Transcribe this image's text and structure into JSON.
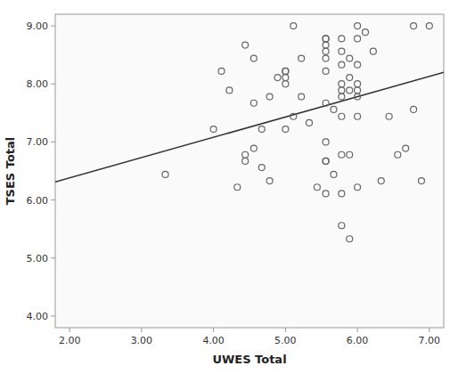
{
  "chart_data": {
    "type": "scatter",
    "xlabel": "UWES Total",
    "ylabel": "TSES Total",
    "xlim": [
      1.8,
      7.2
    ],
    "ylim": [
      3.8,
      9.2
    ],
    "xticks": [
      {
        "value": 2.0,
        "label": "2.00"
      },
      {
        "value": 3.0,
        "label": "3.00"
      },
      {
        "value": 4.0,
        "label": "4.00"
      },
      {
        "value": 5.0,
        "label": "5.00"
      },
      {
        "value": 6.0,
        "label": "6.00"
      },
      {
        "value": 7.0,
        "label": "7.00"
      }
    ],
    "yticks": [
      {
        "value": 4.0,
        "label": "4.00"
      },
      {
        "value": 5.0,
        "label": "5.00"
      },
      {
        "value": 6.0,
        "label": "6.00"
      },
      {
        "value": 7.0,
        "label": "7.00"
      },
      {
        "value": 8.0,
        "label": "8.00"
      },
      {
        "value": 9.0,
        "label": "9.00"
      }
    ],
    "grid": false,
    "series": [
      {
        "type": "scatter",
        "marker": "open-circle",
        "color": "#666666",
        "x": [
          3.33,
          4.0,
          4.11,
          4.22,
          4.33,
          4.44,
          4.44,
          4.44,
          4.56,
          4.56,
          4.56,
          4.67,
          4.67,
          4.78,
          4.78,
          4.89,
          5.0,
          5.0,
          5.0,
          5.0,
          5.0,
          5.11,
          5.11,
          5.22,
          5.22,
          5.33,
          5.44,
          5.56,
          5.56,
          5.56,
          5.56,
          5.56,
          5.56,
          5.56,
          5.56,
          5.56,
          5.56,
          5.56,
          5.67,
          5.67,
          5.78,
          5.78,
          5.78,
          5.78,
          5.78,
          5.78,
          5.78,
          5.78,
          5.78,
          5.78,
          5.89,
          5.89,
          5.89,
          5.89,
          5.89,
          6.0,
          6.0,
          6.0,
          6.0,
          6.0,
          6.0,
          6.0,
          6.0,
          6.11,
          6.22,
          6.33,
          6.44,
          6.56,
          6.67,
          6.78,
          6.78,
          6.89,
          7.0
        ],
        "values": [
          6.44,
          7.22,
          8.22,
          7.89,
          6.22,
          8.67,
          6.78,
          6.67,
          8.44,
          7.67,
          6.89,
          7.22,
          6.56,
          7.78,
          6.33,
          8.11,
          8.11,
          8.22,
          8.22,
          8.0,
          7.22,
          9.0,
          7.44,
          8.44,
          7.78,
          7.33,
          6.22,
          8.78,
          8.78,
          8.67,
          8.56,
          8.44,
          8.22,
          7.67,
          7.0,
          6.67,
          6.67,
          6.11,
          7.56,
          6.44,
          8.78,
          8.56,
          8.33,
          8.0,
          7.89,
          7.78,
          7.44,
          6.78,
          6.11,
          5.56,
          8.44,
          8.11,
          7.89,
          6.78,
          5.33,
          9.0,
          8.78,
          8.33,
          8.0,
          7.89,
          7.78,
          7.44,
          6.22,
          8.89,
          8.56,
          6.33,
          7.44,
          6.78,
          6.89,
          9.0,
          7.56,
          6.33,
          9.0
        ]
      },
      {
        "type": "line",
        "color": "#333333",
        "x": [
          1.8,
          7.2
        ],
        "values": [
          6.31,
          8.2
        ]
      }
    ]
  }
}
